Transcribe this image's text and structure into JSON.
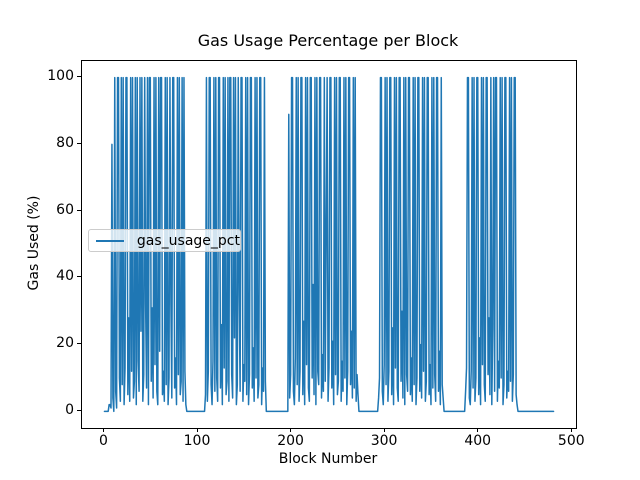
{
  "figure": {
    "title": "Gas Usage Percentage per Block",
    "xlabel": "Block Number",
    "ylabel": "Gas Used (%)",
    "legend_label": "gas_usage_pct",
    "line_color": "#1f77b4",
    "background_color": "#ffffff",
    "text_color": "#000000"
  },
  "chart_data": {
    "type": "line",
    "title": "Gas Usage Percentage per Block",
    "xlabel": "Block Number",
    "ylabel": "Gas Used (%)",
    "legend_position": "center-left",
    "grid": false,
    "xlim": [
      -24,
      504
    ],
    "ylim": [
      -5,
      105
    ],
    "x_ticks": [
      0,
      100,
      200,
      300,
      400,
      500
    ],
    "y_ticks": [
      0,
      20,
      40,
      60,
      80,
      100
    ],
    "series": [
      {
        "name": "gas_usage_pct",
        "color": "#1f77b4",
        "x_start": 0,
        "x_step": 1,
        "values": [
          0,
          0,
          0,
          0,
          0,
          2,
          2,
          1,
          80,
          4,
          0,
          100,
          6,
          1,
          100,
          100,
          10,
          3,
          100,
          8,
          100,
          2,
          13,
          100,
          100,
          5,
          28,
          3,
          100,
          12,
          100,
          4,
          9,
          100,
          2,
          100,
          15,
          6,
          100,
          24,
          100,
          3,
          11,
          100,
          32,
          7,
          100,
          2,
          100,
          100,
          9,
          31,
          4,
          100,
          14,
          100,
          6,
          2,
          100,
          18,
          100,
          100,
          5,
          12,
          3,
          100,
          8,
          100,
          2,
          10,
          100,
          33,
          4,
          100,
          100,
          7,
          16,
          2,
          100,
          11,
          100,
          5,
          9,
          100,
          3,
          100,
          12,
          2,
          0,
          0,
          0,
          0,
          0,
          0,
          0,
          0,
          0,
          0,
          0,
          0,
          0,
          0,
          0,
          0,
          0,
          0,
          0,
          0,
          5,
          100,
          3,
          12,
          100,
          100,
          8,
          2,
          15,
          100,
          6,
          100,
          10,
          3,
          100,
          100,
          7,
          26,
          2,
          100,
          13,
          100,
          5,
          9,
          100,
          3,
          100,
          100,
          11,
          4,
          100,
          22,
          100,
          2,
          8,
          100,
          35,
          6,
          100,
          100,
          3,
          14,
          9,
          100,
          5,
          100,
          2,
          11,
          100,
          100,
          7,
          19,
          3,
          100,
          10,
          100,
          4,
          8,
          100,
          100,
          2,
          13,
          6,
          100,
          9,
          0,
          0,
          0,
          0,
          0,
          0,
          0,
          0,
          0,
          0,
          0,
          0,
          0,
          0,
          0,
          0,
          0,
          0,
          0,
          0,
          0,
          0,
          0,
          0,
          89,
          4,
          11,
          100,
          100,
          6,
          2,
          16,
          100,
          8,
          100,
          3,
          12,
          100,
          100,
          5,
          27,
          2,
          100,
          14,
          100,
          7,
          3,
          100,
          100,
          10,
          38,
          5,
          100,
          2,
          100,
          12,
          8,
          100,
          100,
          4,
          17,
          6,
          100,
          9,
          54,
          100,
          3,
          13,
          100,
          100,
          7,
          21,
          2,
          100,
          11,
          100,
          5,
          9,
          100,
          100,
          3,
          15,
          6,
          100,
          10,
          100,
          2,
          12,
          100,
          100,
          8,
          24,
          4,
          100,
          7,
          100,
          3,
          11,
          5,
          0,
          0,
          0,
          0,
          0,
          0,
          0,
          0,
          0,
          0,
          0,
          0,
          0,
          0,
          0,
          0,
          0,
          0,
          0,
          0,
          0,
          4,
          10,
          100,
          100,
          6,
          2,
          14,
          100,
          8,
          100,
          3,
          12,
          100,
          100,
          5,
          25,
          2,
          100,
          13,
          100,
          7,
          3,
          100,
          100,
          9,
          30,
          4,
          100,
          2,
          100,
          11,
          6,
          100,
          100,
          5,
          16,
          3,
          100,
          8,
          100,
          2,
          10,
          100,
          100,
          6,
          20,
          4,
          100,
          12,
          100,
          3,
          9,
          100,
          100,
          5,
          14,
          2,
          100,
          7,
          100,
          11,
          3,
          100,
          100,
          6,
          18,
          2,
          100,
          8,
          4,
          0,
          0,
          0,
          0,
          0,
          0,
          0,
          0,
          0,
          0,
          0,
          0,
          0,
          0,
          0,
          0,
          0,
          0,
          0,
          0,
          0,
          0,
          0,
          6,
          13,
          100,
          100,
          4,
          2,
          12,
          100,
          7,
          100,
          3,
          10,
          100,
          100,
          5,
          22,
          2,
          100,
          14,
          100,
          8,
          3,
          100,
          100,
          11,
          28,
          5,
          100,
          2,
          25,
          100,
          6,
          100,
          100,
          3,
          15,
          7,
          100,
          10,
          100,
          2,
          8,
          100,
          100,
          4,
          12,
          6,
          100,
          9,
          100,
          3,
          11,
          100,
          100,
          5,
          2,
          0,
          0,
          0,
          0,
          0,
          0,
          0,
          0,
          0,
          0,
          0,
          0,
          0,
          0,
          0,
          0,
          0,
          0,
          0,
          0,
          0,
          0,
          0,
          0,
          0,
          0,
          0,
          0,
          0,
          0,
          0,
          0,
          0,
          0,
          0,
          0,
          0,
          0,
          0
        ]
      }
    ]
  }
}
